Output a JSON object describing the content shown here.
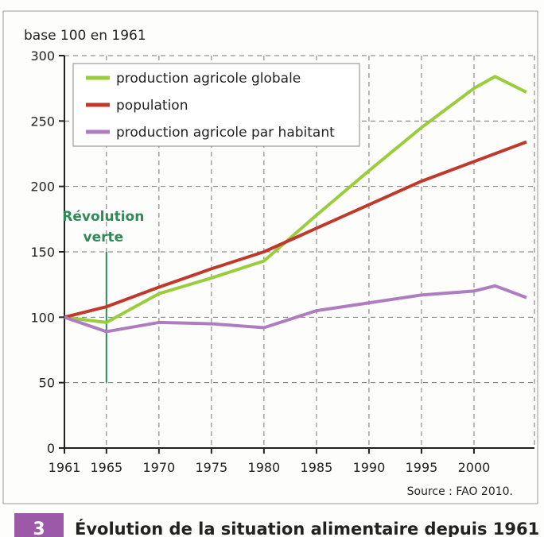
{
  "chart_data": {
    "type": "line",
    "ylabel": "base 100 en 1961",
    "ylim": [
      0,
      300
    ],
    "yticks": [
      0,
      50,
      100,
      150,
      200,
      250,
      300
    ],
    "xlim": [
      1961,
      2005
    ],
    "xticks": [
      1961,
      1965,
      1970,
      1975,
      1980,
      1985,
      1990,
      1995,
      2000
    ],
    "grid": true,
    "legend_position": "top-left",
    "series": [
      {
        "name": "production agricole globale",
        "color": "#9acd3c",
        "x": [
          1961,
          1965,
          1970,
          1975,
          1980,
          1985,
          1990,
          1995,
          2000,
          2002,
          2005
        ],
        "y": [
          100,
          96,
          118,
          130,
          143,
          178,
          212,
          245,
          275,
          284,
          272
        ]
      },
      {
        "name": "population",
        "color": "#c0392b",
        "x": [
          1961,
          1965,
          1970,
          1975,
          1980,
          1985,
          1990,
          1995,
          2000,
          2005
        ],
        "y": [
          100,
          108,
          123,
          137,
          150,
          168,
          186,
          204,
          219,
          234
        ]
      },
      {
        "name": "production agricole par habitant",
        "color": "#b07cc0",
        "x": [
          1961,
          1965,
          1970,
          1975,
          1980,
          1985,
          1990,
          1995,
          2000,
          2002,
          2005
        ],
        "y": [
          100,
          89,
          96,
          95,
          92,
          105,
          111,
          117,
          120,
          124,
          115
        ]
      }
    ],
    "annotations": [
      {
        "text_lines": [
          "Révolution",
          "verte"
        ],
        "x": 1965,
        "y_range": [
          50,
          150
        ],
        "color": "#2e8b57"
      }
    ],
    "source": "Source : FAO 2010."
  },
  "caption": {
    "number": "3",
    "title": "Évolution de la situation alimentaire depuis 1961",
    "badge_color": "#9b59a8"
  }
}
